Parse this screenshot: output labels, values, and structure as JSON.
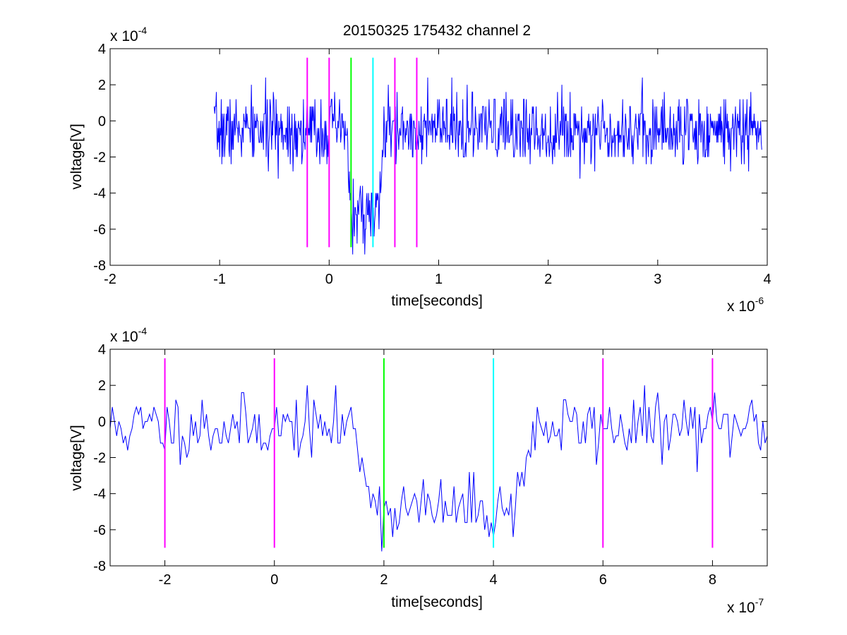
{
  "title": "20150325 175432 channel 2",
  "colors": {
    "signal": "#0000ff",
    "marker_magenta": "#ff00ff",
    "marker_green": "#00ff00",
    "marker_cyan": "#00ffff",
    "axes": "#000000",
    "background": "#ffffff"
  },
  "chart_data": [
    {
      "type": "line",
      "title": "20150325 175432 channel 2",
      "xlabel": "time[seconds]",
      "ylabel": "voltage[V]",
      "x_multiplier": {
        "base": "x 10",
        "exponent": "-6"
      },
      "y_multiplier": {
        "base": "x 10",
        "exponent": "-4"
      },
      "xlim": [
        -2,
        4
      ],
      "ylim": [
        -8,
        4
      ],
      "x_ticks": [
        "-2",
        "-1",
        "0",
        "1",
        "2",
        "3",
        "4"
      ],
      "x_tick_values": [
        -2,
        -1,
        0,
        1,
        2,
        3,
        4
      ],
      "y_ticks": [
        "4",
        "2",
        "0",
        "-2",
        "-4",
        "-6",
        "-8"
      ],
      "y_tick_values": [
        4,
        2,
        0,
        -2,
        -4,
        -6,
        -8
      ],
      "grid": false,
      "signal": {
        "x_range": [
          -1.05,
          3.95
        ],
        "sample_step": 0.005,
        "quantum": 0.4,
        "baseline": -0.5,
        "noise_sd": 0.95,
        "dip": {
          "start": 0.15,
          "end": 0.45,
          "depth": -4.7
        },
        "seed": 7
      },
      "markers": [
        {
          "x": -0.2,
          "color": "magenta",
          "y_range": [
            -7,
            3.5
          ]
        },
        {
          "x": 0.0,
          "color": "magenta",
          "y_range": [
            -7,
            3.5
          ]
        },
        {
          "x": 0.2,
          "color": "green",
          "y_range": [
            -7,
            3.5
          ]
        },
        {
          "x": 0.4,
          "color": "cyan",
          "y_range": [
            -7,
            3.5
          ]
        },
        {
          "x": 0.6,
          "color": "magenta",
          "y_range": [
            -7,
            3.5
          ]
        },
        {
          "x": 0.8,
          "color": "magenta",
          "y_range": [
            -7,
            3.5
          ]
        }
      ]
    },
    {
      "type": "line",
      "title": "",
      "xlabel": "time[seconds]",
      "ylabel": "voltage[V]",
      "x_multiplier": {
        "base": "x 10",
        "exponent": "-7"
      },
      "y_multiplier": {
        "base": "x 10",
        "exponent": "-4"
      },
      "xlim": [
        -3,
        9
      ],
      "ylim": [
        -8,
        4
      ],
      "x_ticks": [
        "-2",
        "0",
        "2",
        "4",
        "6",
        "8"
      ],
      "x_tick_values": [
        -2,
        0,
        2,
        4,
        6,
        8
      ],
      "y_ticks": [
        "4",
        "2",
        "0",
        "-2",
        "-4",
        "-6",
        "-8"
      ],
      "y_tick_values": [
        4,
        2,
        0,
        -2,
        -4,
        -6,
        -8
      ],
      "grid": false,
      "signal": {
        "x_range": [
          -3,
          9
        ],
        "sample_step": 0.04,
        "quantum": 0.4,
        "baseline": -0.3,
        "noise_sd": 0.9,
        "dip": {
          "start": 1.4,
          "end": 4.3,
          "depth": -4.6
        },
        "seed": 11
      },
      "markers": [
        {
          "x": -2,
          "color": "magenta",
          "y_range": [
            -7,
            3.5
          ]
        },
        {
          "x": 0,
          "color": "magenta",
          "y_range": [
            -7,
            3.5
          ]
        },
        {
          "x": 2,
          "color": "green",
          "y_range": [
            -7,
            3.5
          ]
        },
        {
          "x": 4,
          "color": "cyan",
          "y_range": [
            -7,
            3.5
          ]
        },
        {
          "x": 6,
          "color": "magenta",
          "y_range": [
            -7,
            3.5
          ]
        },
        {
          "x": 8,
          "color": "magenta",
          "y_range": [
            -7,
            3.5
          ]
        }
      ]
    }
  ]
}
